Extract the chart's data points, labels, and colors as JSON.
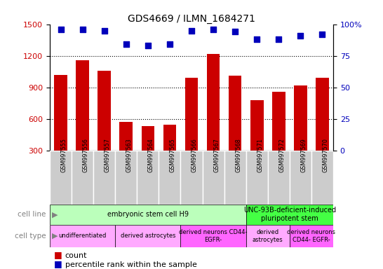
{
  "title": "GDS4669 / ILMN_1684271",
  "samples": [
    "GSM997555",
    "GSM997556",
    "GSM997557",
    "GSM997563",
    "GSM997564",
    "GSM997565",
    "GSM997566",
    "GSM997567",
    "GSM997568",
    "GSM997571",
    "GSM997572",
    "GSM997569",
    "GSM997570"
  ],
  "counts": [
    1020,
    1160,
    1060,
    570,
    530,
    545,
    990,
    1220,
    1010,
    780,
    860,
    920,
    990
  ],
  "percentiles": [
    96,
    96,
    95,
    84,
    83,
    84,
    95,
    96,
    94,
    88,
    88,
    91,
    92
  ],
  "ylim_left": [
    300,
    1500
  ],
  "ylim_right": [
    0,
    100
  ],
  "yticks_left": [
    300,
    600,
    900,
    1200,
    1500
  ],
  "yticks_right": [
    0,
    25,
    50,
    75,
    100
  ],
  "bar_color": "#cc0000",
  "dot_color": "#0000bb",
  "grid_color": "#000000",
  "sample_bg_color": "#cccccc",
  "cell_line_groups": [
    {
      "label": "embryonic stem cell H9",
      "start": 0,
      "end": 9,
      "color": "#bbffbb"
    },
    {
      "label": "UNC-93B-deficient-induced\npluripotent stem",
      "start": 9,
      "end": 13,
      "color": "#44ff44"
    }
  ],
  "cell_type_groups": [
    {
      "label": "undifferentiated",
      "start": 0,
      "end": 3,
      "color": "#ffaaff"
    },
    {
      "label": "derived astrocytes",
      "start": 3,
      "end": 6,
      "color": "#ffaaff"
    },
    {
      "label": "derived neurons CD44-\nEGFR-",
      "start": 6,
      "end": 9,
      "color": "#ff66ff"
    },
    {
      "label": "derived\nastrocytes",
      "start": 9,
      "end": 11,
      "color": "#ffaaff"
    },
    {
      "label": "derived neurons\nCD44- EGFR-",
      "start": 11,
      "end": 13,
      "color": "#ff66ff"
    }
  ],
  "bar_width": 0.6
}
